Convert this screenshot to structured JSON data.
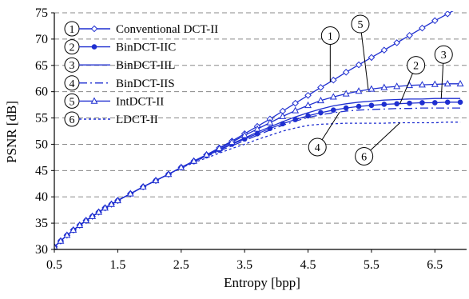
{
  "chart_data": {
    "type": "line",
    "xlabel": "Entropy [bpp]",
    "ylabel": "PSNR [dB]",
    "xlim": [
      0.5,
      7.0
    ],
    "ylim": [
      30,
      75
    ],
    "xticks": [
      0.5,
      1.5,
      2.5,
      3.5,
      4.5,
      5.5,
      6.5
    ],
    "yticks": [
      30,
      35,
      40,
      45,
      50,
      55,
      60,
      65,
      70,
      75
    ],
    "grid": "horizontal dashed",
    "legend_position": "top-left",
    "series": [
      {
        "id": "1",
        "name": "Conventional DCT-II",
        "color": "#1f2fd0",
        "dash": "solid",
        "marker": "diamond",
        "x": [
          0.5,
          0.6,
          0.7,
          0.8,
          0.9,
          1.0,
          1.1,
          1.2,
          1.3,
          1.4,
          1.5,
          1.7,
          1.9,
          2.1,
          2.3,
          2.5,
          2.7,
          2.9,
          3.1,
          3.3,
          3.5,
          3.7,
          3.9,
          4.1,
          4.3,
          4.5,
          4.7,
          4.9,
          5.1,
          5.3,
          5.5,
          5.7,
          5.9,
          6.1,
          6.3,
          6.5,
          6.7,
          6.9
        ],
        "y": [
          30.5,
          31.6,
          32.7,
          33.7,
          34.6,
          35.5,
          36.3,
          37.1,
          37.9,
          38.6,
          39.3,
          40.6,
          41.9,
          43.1,
          44.3,
          45.6,
          46.8,
          48.0,
          49.3,
          50.6,
          52.0,
          53.4,
          54.8,
          56.3,
          57.8,
          59.3,
          60.8,
          62.2,
          63.7,
          65.1,
          66.5,
          67.9,
          69.3,
          70.7,
          72.1,
          73.5,
          74.8,
          76.1
        ]
      },
      {
        "id": "2",
        "name": "BinDCT-IIC",
        "color": "#1f2fd0",
        "dash": "solid",
        "marker": "circle",
        "x": [
          0.5,
          0.6,
          0.7,
          0.8,
          0.9,
          1.0,
          1.1,
          1.2,
          1.3,
          1.4,
          1.5,
          1.7,
          1.9,
          2.1,
          2.3,
          2.5,
          2.7,
          2.9,
          3.1,
          3.3,
          3.5,
          3.7,
          3.9,
          4.1,
          4.3,
          4.5,
          4.7,
          4.9,
          5.1,
          5.3,
          5.5,
          5.7,
          5.9,
          6.1,
          6.3,
          6.5,
          6.7,
          6.9
        ],
        "y": [
          30.5,
          31.6,
          32.7,
          33.7,
          34.6,
          35.5,
          36.3,
          37.1,
          37.9,
          38.6,
          39.3,
          40.6,
          41.9,
          43.1,
          44.3,
          45.6,
          46.7,
          47.8,
          48.9,
          50.0,
          51.0,
          52.0,
          53.0,
          53.9,
          54.7,
          55.4,
          56.0,
          56.5,
          56.9,
          57.2,
          57.4,
          57.6,
          57.7,
          57.8,
          57.9,
          57.9,
          58.0,
          58.0
        ]
      },
      {
        "id": "3",
        "name": "BinDCT-IIL",
        "color": "#1f2fd0",
        "dash": "solid",
        "marker": "none",
        "x": [
          0.5,
          0.7,
          0.9,
          1.1,
          1.3,
          1.5,
          1.7,
          1.9,
          2.1,
          2.3,
          2.5,
          2.7,
          2.9,
          3.1,
          3.3,
          3.5,
          3.7,
          3.9,
          4.1,
          4.3,
          4.5,
          4.7,
          4.9,
          5.1,
          5.3,
          5.5,
          5.7,
          5.9,
          6.1,
          6.3,
          6.5,
          6.7,
          6.9
        ],
        "y": [
          30.5,
          32.7,
          34.6,
          36.3,
          37.9,
          39.3,
          40.6,
          41.9,
          43.1,
          44.3,
          45.6,
          46.8,
          47.9,
          49.0,
          50.1,
          51.2,
          52.3,
          53.3,
          54.3,
          55.2,
          56.0,
          56.7,
          57.3,
          57.7,
          58.0,
          58.2,
          58.4,
          58.5,
          58.6,
          58.6,
          58.7,
          58.7,
          58.7
        ]
      },
      {
        "id": "4",
        "name": "BinDCT-IIS",
        "color": "#1f2fd0",
        "dash": "dashdot",
        "marker": "none",
        "x": [
          0.5,
          0.7,
          0.9,
          1.1,
          1.3,
          1.5,
          1.7,
          1.9,
          2.1,
          2.3,
          2.5,
          2.7,
          2.9,
          3.1,
          3.3,
          3.5,
          3.7,
          3.9,
          4.1,
          4.3,
          4.5,
          4.7,
          4.9,
          5.1,
          5.3,
          5.5,
          5.7,
          5.9,
          6.1,
          6.3,
          6.5,
          6.7,
          6.9
        ],
        "y": [
          30.5,
          32.7,
          34.6,
          36.3,
          37.9,
          39.3,
          40.6,
          41.9,
          43.1,
          44.3,
          45.5,
          46.6,
          47.7,
          48.7,
          49.7,
          50.7,
          51.7,
          52.7,
          53.6,
          54.4,
          55.1,
          55.6,
          56.0,
          56.3,
          56.5,
          56.6,
          56.7,
          56.8,
          56.8,
          56.9,
          56.9,
          56.9,
          56.9
        ]
      },
      {
        "id": "5",
        "name": "IntDCT-II",
        "color": "#1f2fd0",
        "dash": "solid",
        "marker": "triangle",
        "x": [
          0.5,
          0.6,
          0.7,
          0.8,
          0.9,
          1.0,
          1.1,
          1.2,
          1.3,
          1.4,
          1.5,
          1.7,
          1.9,
          2.1,
          2.3,
          2.5,
          2.7,
          2.9,
          3.1,
          3.3,
          3.5,
          3.7,
          3.9,
          4.1,
          4.3,
          4.5,
          4.7,
          4.9,
          5.1,
          5.3,
          5.5,
          5.7,
          5.9,
          6.1,
          6.3,
          6.5,
          6.7,
          6.9
        ],
        "y": [
          30.5,
          31.6,
          32.7,
          33.7,
          34.6,
          35.5,
          36.3,
          37.1,
          37.9,
          38.6,
          39.3,
          40.6,
          41.9,
          43.1,
          44.3,
          45.6,
          46.8,
          48.0,
          49.2,
          50.4,
          51.7,
          52.9,
          54.1,
          55.3,
          56.4,
          57.4,
          58.3,
          59.0,
          59.6,
          60.1,
          60.5,
          60.8,
          61.0,
          61.2,
          61.3,
          61.4,
          61.5,
          61.5
        ]
      },
      {
        "id": "6",
        "name": "LDCT-II",
        "color": "#1f2fd0",
        "dash": "dotted",
        "marker": "none",
        "x": [
          0.5,
          0.7,
          0.9,
          1.1,
          1.3,
          1.5,
          1.7,
          1.9,
          2.1,
          2.3,
          2.5,
          2.7,
          2.9,
          3.1,
          3.3,
          3.5,
          3.7,
          3.9,
          4.1,
          4.3,
          4.5,
          4.7,
          4.9,
          5.1,
          5.3,
          5.5,
          5.7,
          5.9,
          6.1,
          6.3,
          6.5,
          6.7,
          6.9
        ],
        "y": [
          30.5,
          32.7,
          34.6,
          36.3,
          37.9,
          39.3,
          40.6,
          41.9,
          43.1,
          44.3,
          45.5,
          46.5,
          47.4,
          48.3,
          49.2,
          50.0,
          50.9,
          51.7,
          52.5,
          53.1,
          53.6,
          53.8,
          53.9,
          54.0,
          54.0,
          54.0,
          54.0,
          54.1,
          54.1,
          54.1,
          54.1,
          54.2,
          54.2
        ]
      }
    ],
    "annotations": [
      {
        "label": "1",
        "series": "1",
        "at_x": 4.85
      },
      {
        "label": "5",
        "series": "5",
        "at_x": 5.45
      },
      {
        "label": "2",
        "series": "2",
        "at_x": 5.95
      },
      {
        "label": "3",
        "series": "3",
        "at_x": 6.6
      },
      {
        "label": "4",
        "series": "4",
        "at_x": 5.0
      },
      {
        "label": "6",
        "series": "6",
        "at_x": 5.95
      }
    ]
  }
}
